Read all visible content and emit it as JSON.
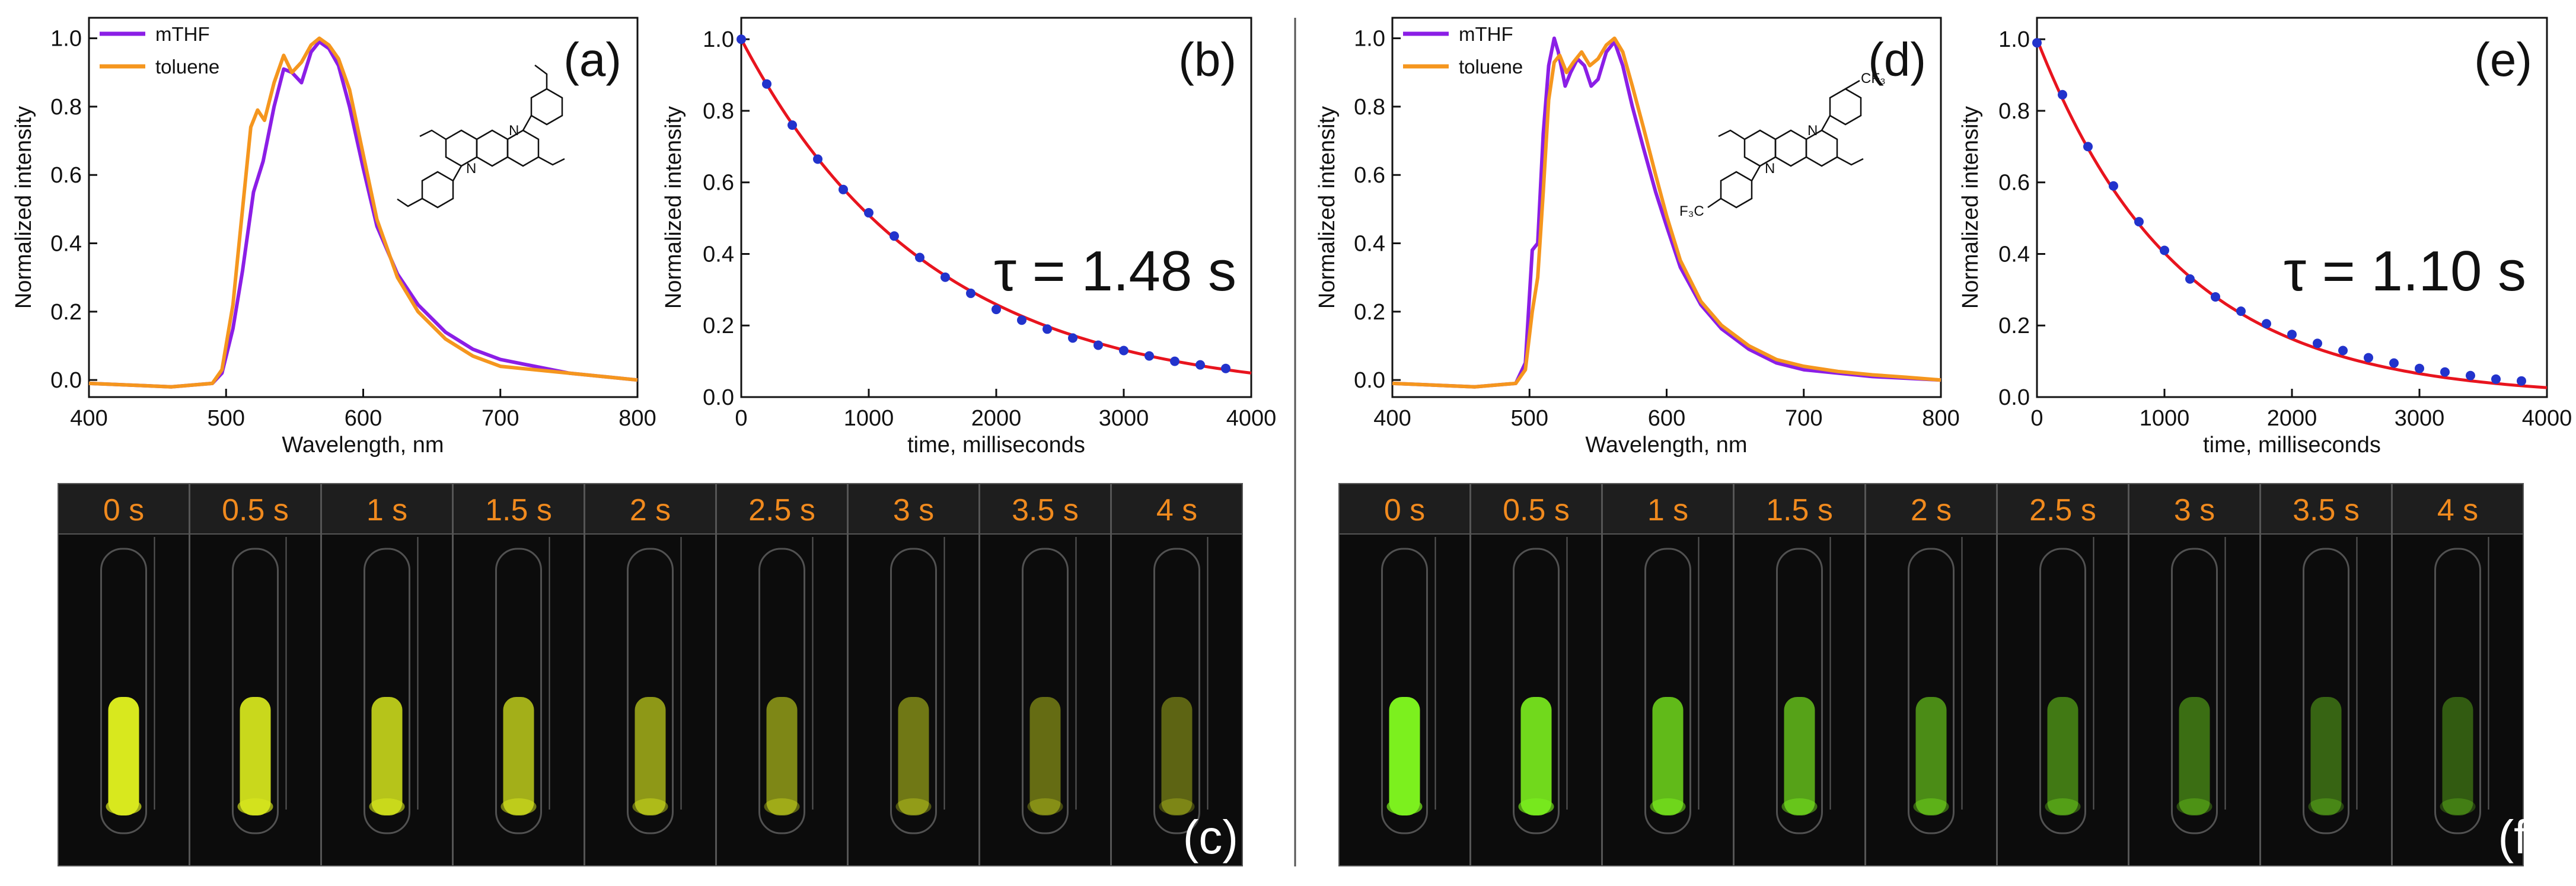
{
  "colors": {
    "mthf": "#8b1ee6",
    "toluene": "#f5961e",
    "fit_line": "#e8141e",
    "data_points": "#2233cc",
    "time_label": "#f08a1e",
    "photo_bg": "#0c0c0c"
  },
  "chart_data": [
    {
      "id": "a",
      "type": "line",
      "panel_label": "(a)",
      "xlabel": "Wavelength, nm",
      "ylabel": "Normalized intensity",
      "xlim": [
        400,
        800
      ],
      "ylim": [
        -0.05,
        1.06
      ],
      "xticks": [
        400,
        500,
        600,
        700,
        800
      ],
      "yticks": [
        0.0,
        0.2,
        0.4,
        0.6,
        0.8,
        1.0
      ],
      "legend": [
        "mTHF",
        "toluene"
      ],
      "legend_position": "top-left",
      "series": [
        {
          "name": "mTHF",
          "x": [
            400,
            460,
            490,
            497,
            505,
            512,
            520,
            527,
            535,
            542,
            548,
            555,
            562,
            568,
            575,
            582,
            590,
            600,
            610,
            625,
            640,
            660,
            680,
            700,
            725,
            750,
            775,
            800
          ],
          "y": [
            -0.01,
            -0.02,
            -0.01,
            0.02,
            0.15,
            0.32,
            0.55,
            0.64,
            0.8,
            0.91,
            0.9,
            0.87,
            0.96,
            0.99,
            0.97,
            0.92,
            0.8,
            0.62,
            0.45,
            0.31,
            0.22,
            0.14,
            0.09,
            0.06,
            0.04,
            0.02,
            0.01,
            0.0
          ]
        },
        {
          "name": "toluene",
          "x": [
            400,
            460,
            490,
            497,
            505,
            512,
            518,
            523,
            528,
            535,
            542,
            548,
            555,
            562,
            568,
            575,
            582,
            590,
            600,
            610,
            625,
            640,
            660,
            680,
            700,
            725,
            750,
            775,
            800
          ],
          "y": [
            -0.01,
            -0.02,
            -0.01,
            0.03,
            0.22,
            0.5,
            0.74,
            0.79,
            0.76,
            0.87,
            0.95,
            0.9,
            0.93,
            0.98,
            1.0,
            0.98,
            0.94,
            0.85,
            0.66,
            0.47,
            0.3,
            0.2,
            0.12,
            0.07,
            0.04,
            0.03,
            0.02,
            0.01,
            0.0
          ]
        }
      ]
    },
    {
      "id": "b",
      "type": "scatter",
      "panel_label": "(b)",
      "xlabel": "time, milliseconds",
      "ylabel": "Normalized intensity",
      "xlim": [
        0,
        4000
      ],
      "ylim": [
        0.0,
        1.06
      ],
      "xticks": [
        0,
        1000,
        2000,
        3000,
        4000
      ],
      "yticks": [
        0.0,
        0.2,
        0.4,
        0.6,
        0.8,
        1.0
      ],
      "annotation": "τ = 1.48 s",
      "tau_ms": 1480,
      "points": {
        "x": [
          0,
          200,
          400,
          600,
          800,
          1000,
          1200,
          1400,
          1600,
          1800,
          2000,
          2200,
          2400,
          2600,
          2800,
          3000,
          3200,
          3400,
          3600,
          3800
        ],
        "y": [
          1.0,
          0.875,
          0.76,
          0.665,
          0.58,
          0.515,
          0.45,
          0.39,
          0.335,
          0.29,
          0.245,
          0.215,
          0.19,
          0.165,
          0.145,
          0.13,
          0.115,
          0.1,
          0.09,
          0.08
        ]
      },
      "fit": {
        "name": "exponential fit",
        "x0": 0,
        "x1": 4000,
        "y0": 1.0,
        "y_inf": 0.0
      }
    },
    {
      "id": "d",
      "type": "line",
      "panel_label": "(d)",
      "xlabel": "Wavelength, nm",
      "ylabel": "Normalized intensity",
      "xlim": [
        400,
        800
      ],
      "ylim": [
        -0.05,
        1.06
      ],
      "xticks": [
        400,
        500,
        600,
        700,
        800
      ],
      "yticks": [
        0.0,
        0.2,
        0.4,
        0.6,
        0.8,
        1.0
      ],
      "legend": [
        "mTHF",
        "toluene"
      ],
      "legend_position": "top-left",
      "series": [
        {
          "name": "mTHF",
          "x": [
            400,
            460,
            490,
            497,
            502,
            506,
            510,
            514,
            518,
            521,
            526,
            530,
            535,
            540,
            545,
            550,
            556,
            562,
            568,
            575,
            583,
            592,
            600,
            610,
            625,
            640,
            660,
            680,
            700,
            725,
            750,
            775,
            800
          ],
          "y": [
            -0.01,
            -0.02,
            -0.01,
            0.05,
            0.38,
            0.4,
            0.72,
            0.92,
            1.0,
            0.96,
            0.86,
            0.9,
            0.94,
            0.92,
            0.86,
            0.88,
            0.96,
            0.99,
            0.92,
            0.8,
            0.68,
            0.55,
            0.45,
            0.33,
            0.22,
            0.15,
            0.09,
            0.05,
            0.03,
            0.02,
            0.01,
            0.005,
            0.0
          ]
        },
        {
          "name": "toluene",
          "x": [
            400,
            460,
            490,
            497,
            502,
            506,
            510,
            514,
            518,
            522,
            527,
            532,
            538,
            544,
            550,
            556,
            562,
            568,
            575,
            583,
            592,
            600,
            610,
            625,
            640,
            660,
            680,
            700,
            725,
            750,
            775,
            800
          ],
          "y": [
            -0.01,
            -0.02,
            -0.01,
            0.03,
            0.2,
            0.3,
            0.55,
            0.82,
            0.93,
            0.95,
            0.9,
            0.93,
            0.96,
            0.92,
            0.94,
            0.98,
            1.0,
            0.96,
            0.86,
            0.74,
            0.6,
            0.48,
            0.35,
            0.23,
            0.16,
            0.1,
            0.06,
            0.04,
            0.025,
            0.015,
            0.008,
            0.0
          ]
        }
      ]
    },
    {
      "id": "e",
      "type": "scatter",
      "panel_label": "(e)",
      "xlabel": "time, milliseconds",
      "ylabel": "Normalized intensity",
      "xlim": [
        0,
        4000
      ],
      "ylim": [
        0.0,
        1.06
      ],
      "xticks": [
        0,
        1000,
        2000,
        3000,
        4000
      ],
      "yticks": [
        0.0,
        0.2,
        0.4,
        0.6,
        0.8,
        1.0
      ],
      "annotation": "τ = 1.10 s",
      "tau_ms": 1100,
      "points": {
        "x": [
          0,
          200,
          400,
          600,
          800,
          1000,
          1200,
          1400,
          1600,
          1800,
          2000,
          2200,
          2400,
          2600,
          2800,
          3000,
          3200,
          3400,
          3600,
          3800
        ],
        "y": [
          0.99,
          0.845,
          0.7,
          0.59,
          0.49,
          0.41,
          0.33,
          0.28,
          0.24,
          0.205,
          0.175,
          0.15,
          0.13,
          0.11,
          0.095,
          0.08,
          0.07,
          0.06,
          0.05,
          0.045
        ]
      },
      "fit": {
        "name": "exponential fit",
        "x0": 0,
        "x1": 4000,
        "y0": 1.0,
        "y_inf": 0.0
      }
    }
  ],
  "photo_strips": [
    {
      "id": "c",
      "panel_label": "(c)",
      "tint": "#d8e81e",
      "time_labels": [
        "0 s",
        "0.5 s",
        "1 s",
        "1.5 s",
        "2 s",
        "2.5 s",
        "3 s",
        "3.5 s",
        "4 s"
      ],
      "brightness": [
        1.0,
        0.92,
        0.8,
        0.68,
        0.56,
        0.46,
        0.38,
        0.32,
        0.27
      ]
    },
    {
      "id": "f",
      "panel_label": "(f)",
      "tint": "#7cf01e",
      "time_labels": [
        "0 s",
        "0.5 s",
        "1 s",
        "1.5 s",
        "2 s",
        "2.5 s",
        "3 s",
        "3.5 s",
        "4 s"
      ],
      "brightness": [
        1.0,
        0.88,
        0.72,
        0.58,
        0.46,
        0.37,
        0.3,
        0.25,
        0.21
      ]
    }
  ],
  "structures": [
    {
      "id": "left",
      "n_atoms": [
        "N",
        "N"
      ],
      "substituent_label": ""
    },
    {
      "id": "right",
      "n_atoms": [
        "N",
        "N"
      ],
      "substituent_label": "CF₃",
      "substituent_label_2": "F₃C"
    }
  ]
}
